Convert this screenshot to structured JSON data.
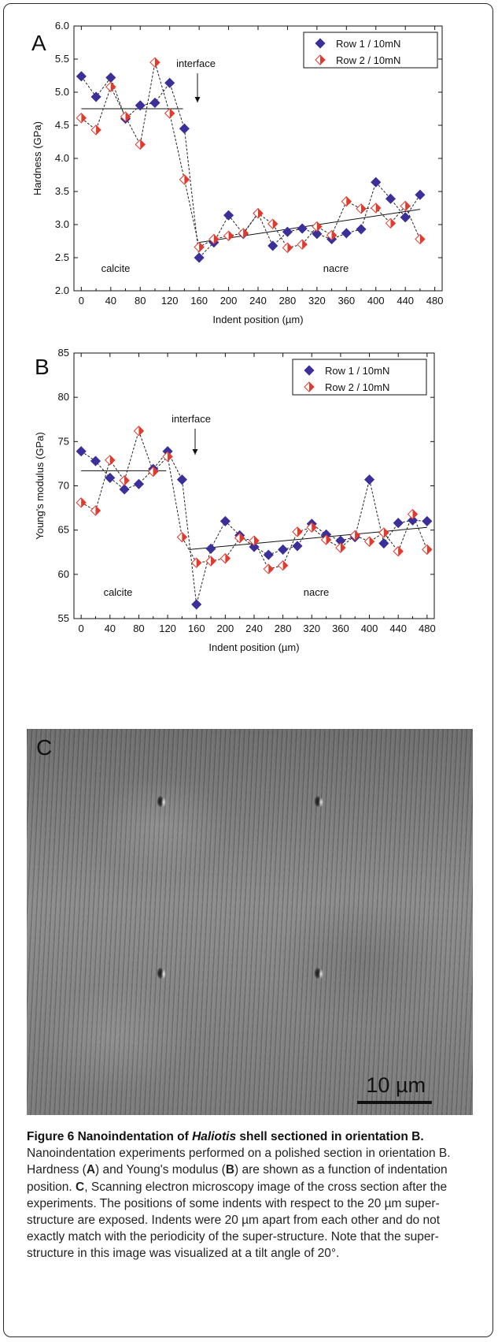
{
  "figure": {
    "panel_a_letter": "A",
    "panel_b_letter": "B",
    "panel_c_letter": "C",
    "scale_bar_label": "10 µm"
  },
  "chart_data": [
    {
      "type": "line",
      "panel": "A",
      "xlabel": "Indent position (µm)",
      "ylabel": "Hardness (GPa)",
      "xlim": [
        -10,
        490
      ],
      "ylim": [
        2.0,
        6.0
      ],
      "x_ticks": [
        0,
        40,
        80,
        120,
        160,
        200,
        240,
        280,
        320,
        360,
        400,
        440,
        480
      ],
      "y_ticks": [
        "2.0",
        "2.5",
        "3.0",
        "3.5",
        "4.0",
        "4.5",
        "5.0",
        "5.5",
        "6.0"
      ],
      "legend_position": "top-right",
      "annotations": {
        "interface": "interface",
        "left_region": "calcite",
        "right_region": "nacre"
      },
      "series": [
        {
          "name": "Row 1 / 10mN",
          "marker": "diamond",
          "color": "#3b2f99",
          "x": [
            0,
            20,
            40,
            60,
            80,
            100,
            120,
            140,
            160,
            180,
            200,
            220,
            240,
            260,
            280,
            300,
            320,
            340,
            360,
            380,
            400,
            420,
            440,
            460
          ],
          "y": [
            5.24,
            4.93,
            5.22,
            4.6,
            4.8,
            4.84,
            5.14,
            4.45,
            2.5,
            2.73,
            3.14,
            2.86,
            3.17,
            2.68,
            2.89,
            2.94,
            2.86,
            2.78,
            2.87,
            2.93,
            3.64,
            3.39,
            3.11,
            3.45
          ]
        },
        {
          "name": "Row 2 / 10mN",
          "marker": "half-diamond",
          "color": "#e23b2e",
          "x": [
            0,
            20,
            40,
            60,
            80,
            100,
            120,
            140,
            160,
            180,
            200,
            220,
            240,
            260,
            280,
            300,
            320,
            340,
            360,
            380,
            400,
            420,
            440,
            460
          ],
          "y": [
            4.61,
            4.43,
            5.08,
            4.63,
            4.21,
            5.45,
            4.68,
            3.68,
            2.66,
            2.78,
            2.83,
            2.87,
            3.17,
            3.01,
            2.65,
            2.7,
            2.97,
            2.84,
            3.35,
            3.24,
            3.25,
            3.02,
            3.28,
            2.78
          ]
        }
      ],
      "fit_lines": [
        {
          "x": [
            0,
            138
          ],
          "y": [
            4.75,
            4.75
          ]
        },
        {
          "x": [
            160,
            460
          ],
          "y": [
            2.73,
            3.23
          ]
        }
      ]
    },
    {
      "type": "line",
      "panel": "B",
      "xlabel": "Indent position (µm)",
      "ylabel": "Young's modulus (GPa)",
      "xlim": [
        -10,
        490
      ],
      "ylim": [
        55,
        85
      ],
      "x_ticks": [
        0,
        40,
        80,
        120,
        160,
        200,
        240,
        280,
        320,
        360,
        400,
        440,
        480
      ],
      "y_ticks": [
        "55",
        "60",
        "65",
        "70",
        "75",
        "80",
        "85"
      ],
      "legend_position": "top-right",
      "annotations": {
        "interface": "interface",
        "left_region": "calcite",
        "right_region": "nacre"
      },
      "series": [
        {
          "name": "Row 1 / 10mN",
          "marker": "diamond",
          "color": "#3b2f99",
          "x": [
            0,
            20,
            40,
            60,
            80,
            100,
            120,
            140,
            160,
            180,
            200,
            220,
            240,
            260,
            280,
            300,
            320,
            340,
            360,
            380,
            400,
            420,
            440,
            460,
            480
          ],
          "y": [
            73.9,
            72.8,
            70.9,
            69.6,
            70.2,
            71.9,
            73.9,
            70.7,
            56.6,
            62.9,
            66.0,
            64.4,
            63.1,
            62.2,
            62.8,
            63.2,
            65.7,
            64.5,
            63.8,
            64.2,
            70.7,
            63.5,
            65.8,
            66.1,
            66.0
          ]
        },
        {
          "name": "Row 2 / 10mN",
          "marker": "half-diamond",
          "color": "#e23b2e",
          "x": [
            0,
            20,
            40,
            60,
            80,
            100,
            120,
            140,
            160,
            180,
            200,
            220,
            240,
            260,
            280,
            300,
            320,
            340,
            360,
            380,
            400,
            420,
            440,
            460,
            480
          ],
          "y": [
            68.1,
            67.2,
            72.9,
            70.6,
            76.2,
            71.6,
            73.3,
            64.2,
            61.3,
            61.5,
            61.8,
            64.1,
            63.8,
            60.6,
            61.0,
            64.8,
            65.3,
            63.9,
            63.0,
            64.4,
            63.7,
            64.7,
            62.6,
            66.8,
            62.8
          ]
        }
      ],
      "fit_lines": [
        {
          "x": [
            0,
            118
          ],
          "y": [
            71.7,
            71.7
          ]
        },
        {
          "x": [
            150,
            480
          ],
          "y": [
            62.8,
            65.3
          ]
        }
      ]
    }
  ],
  "caption": {
    "figure_label": "Figure 6 Nanoindentation of ",
    "genus": "Haliotis",
    "title_rest": " shell sectioned in orientation B.",
    "text_1": " Nanoindentation experiments performed on a polished section in orientation B. Hardness (",
    "ref_a": "A",
    "text_2": ") and Young's modulus (",
    "ref_b": "B",
    "text_3": ") are shown as a function of indentation position. ",
    "ref_c": "C",
    "text_4": ", Scanning electron microscopy image of the cross section after the experiments. The positions of some indents with respect to the 20 µm super-structure are exposed. Indents were 20 µm apart from each other and do not exactly match with the periodicity of the super-structure. Note that the super-structure in this image was visualized at a tilt angle of 20°."
  }
}
